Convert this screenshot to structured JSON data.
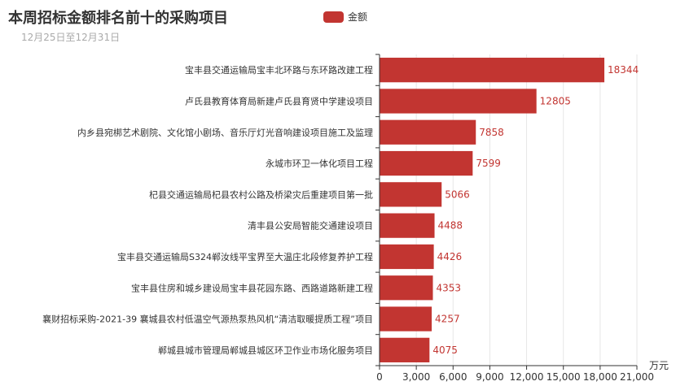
{
  "header": {
    "title": "本周招标金额排名前十的采购项目",
    "subtitle": "12月25日至12月31日"
  },
  "legend": {
    "label": "金额"
  },
  "colors": {
    "bar": "#c23531",
    "axis": "#333333",
    "grid": "#e6e6e6"
  },
  "chart_data": {
    "type": "bar",
    "orientation": "horizontal",
    "title": "本周招标金额排名前十的采购项目",
    "subtitle": "12月25日至12月31日",
    "xlabel": "万元",
    "ylabel": "",
    "xlim": [
      0,
      21000
    ],
    "x_ticks": [
      "0",
      "3,000",
      "6,000",
      "9,000",
      "12,000",
      "15,000",
      "18,000",
      "21,000"
    ],
    "legend_position": "top-center",
    "grid": true,
    "categories": [
      "宝丰县交通运输局宝丰北环路与东环路改建工程",
      "卢氏县教育体育局新建卢氏县育贤中学建设项目",
      "内乡县宛梆艺术剧院、文化馆小剧场、音乐厅灯光音响建设项目施工及监理",
      "永城市环卫一体化项目工程",
      "杞县交通运输局杞县农村公路及桥梁灾后重建项目第一批",
      "清丰县公安局智能交通建设项目",
      "宝丰县交通运输局S324郸汝线平宝界至大温庄北段修复养护工程",
      "宝丰县住房和城乡建设局宝丰县花园东路、西路道路新建工程",
      "襄财招标采购-2021-39 襄城县农村低温空气源热泵热风机“清洁取暖提质工程”项目",
      "郸城县城市管理局郸城县城区环卫作业市场化服务项目"
    ],
    "series": [
      {
        "name": "金额",
        "values": [
          18344,
          12805,
          7858,
          7599,
          5066,
          4488,
          4426,
          4353,
          4257,
          4075
        ]
      }
    ]
  }
}
